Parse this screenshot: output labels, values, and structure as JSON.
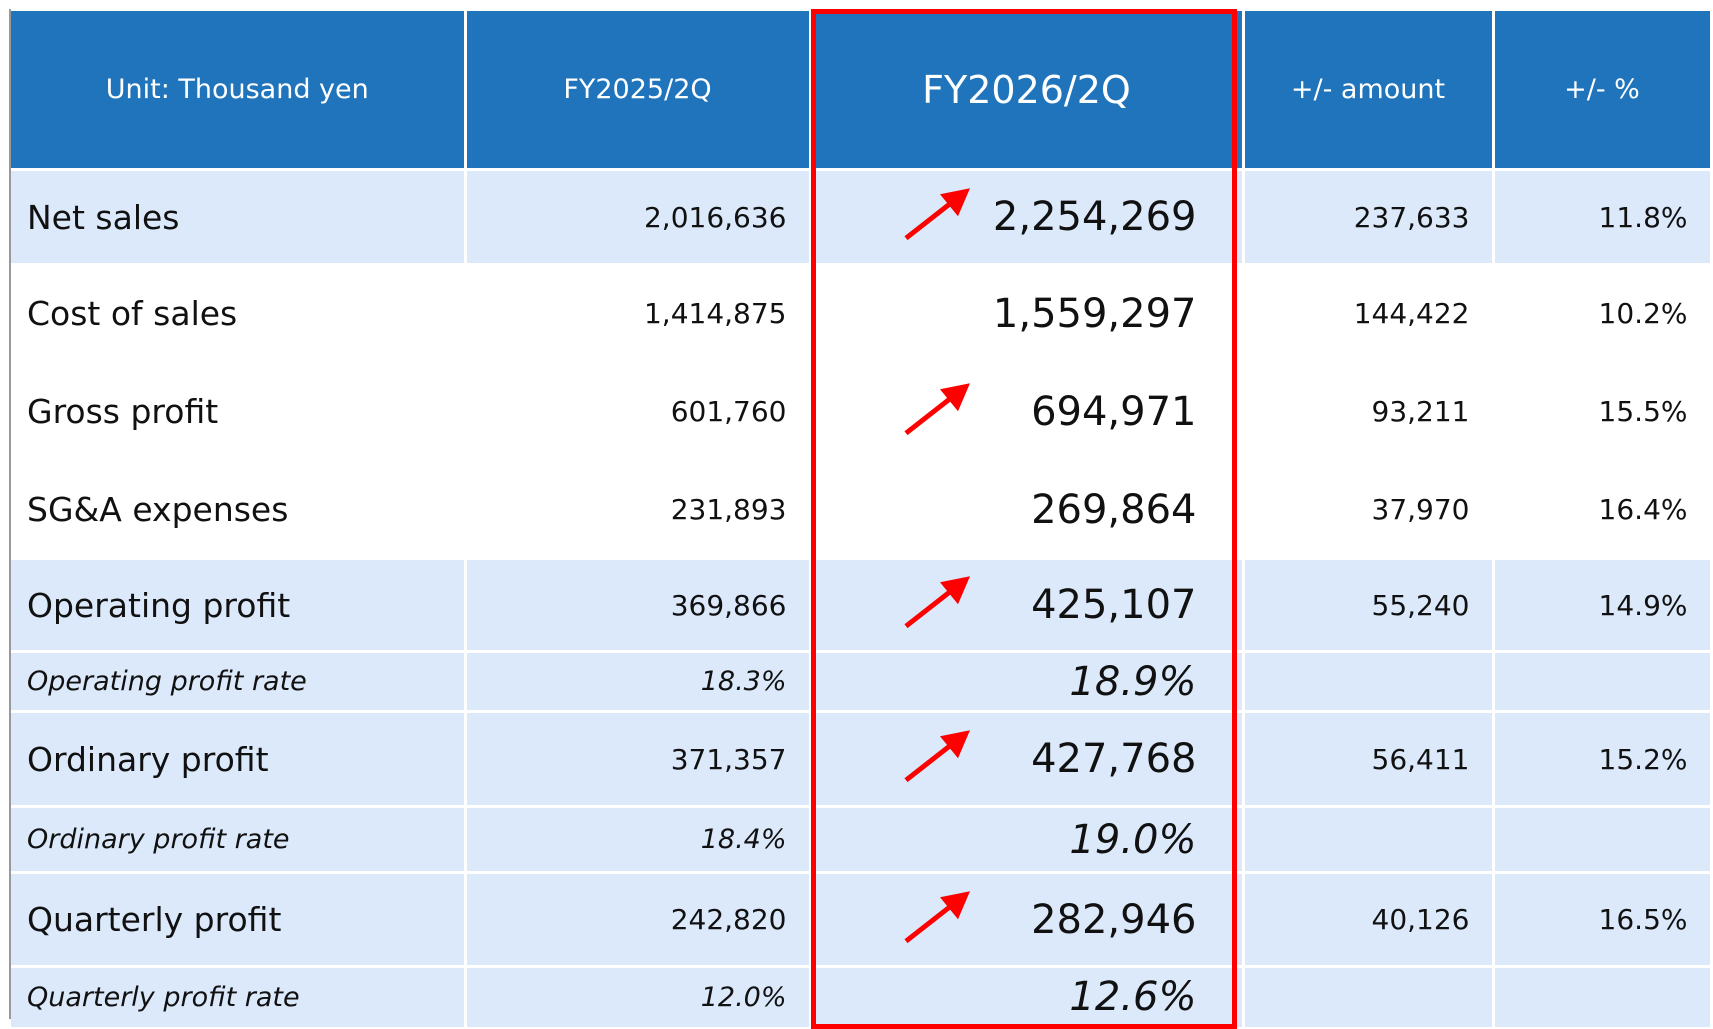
{
  "table": {
    "header": [
      "Unit: Thousand yen",
      "FY2025/2Q",
      "FY2026/2Q",
      "+/- amount",
      "+/- %"
    ],
    "rows": [
      [
        "Net sales",
        "2,016,636",
        "2,254,269",
        "237,633",
        "11.8%"
      ],
      [
        "Cost of sales",
        "1,414,875",
        "1,559,297",
        "144,422",
        "10.2%"
      ],
      [
        "Gross profit",
        "601,760",
        "694,971",
        "93,211",
        "15.5%"
      ],
      [
        "SG&A expenses",
        "231,893",
        "269,864",
        "37,970",
        "16.4%"
      ],
      [
        "Operating profit",
        "369,866",
        "425,107",
        "55,240",
        "14.9%"
      ],
      [
        "Operating profit rate",
        "18.3%",
        "18.9%"
      ],
      [
        "Ordinary profit",
        "371,357",
        "427,768",
        "56,411",
        "15.2%"
      ],
      [
        "Ordinary profit rate",
        "18.4%",
        "19.0%"
      ],
      [
        "Quarterly profit",
        "242,820",
        "282,946",
        "40,126",
        "16.5%"
      ],
      [
        "Quarterly profit rate",
        "12.0%",
        "12.6%"
      ]
    ]
  }
}
